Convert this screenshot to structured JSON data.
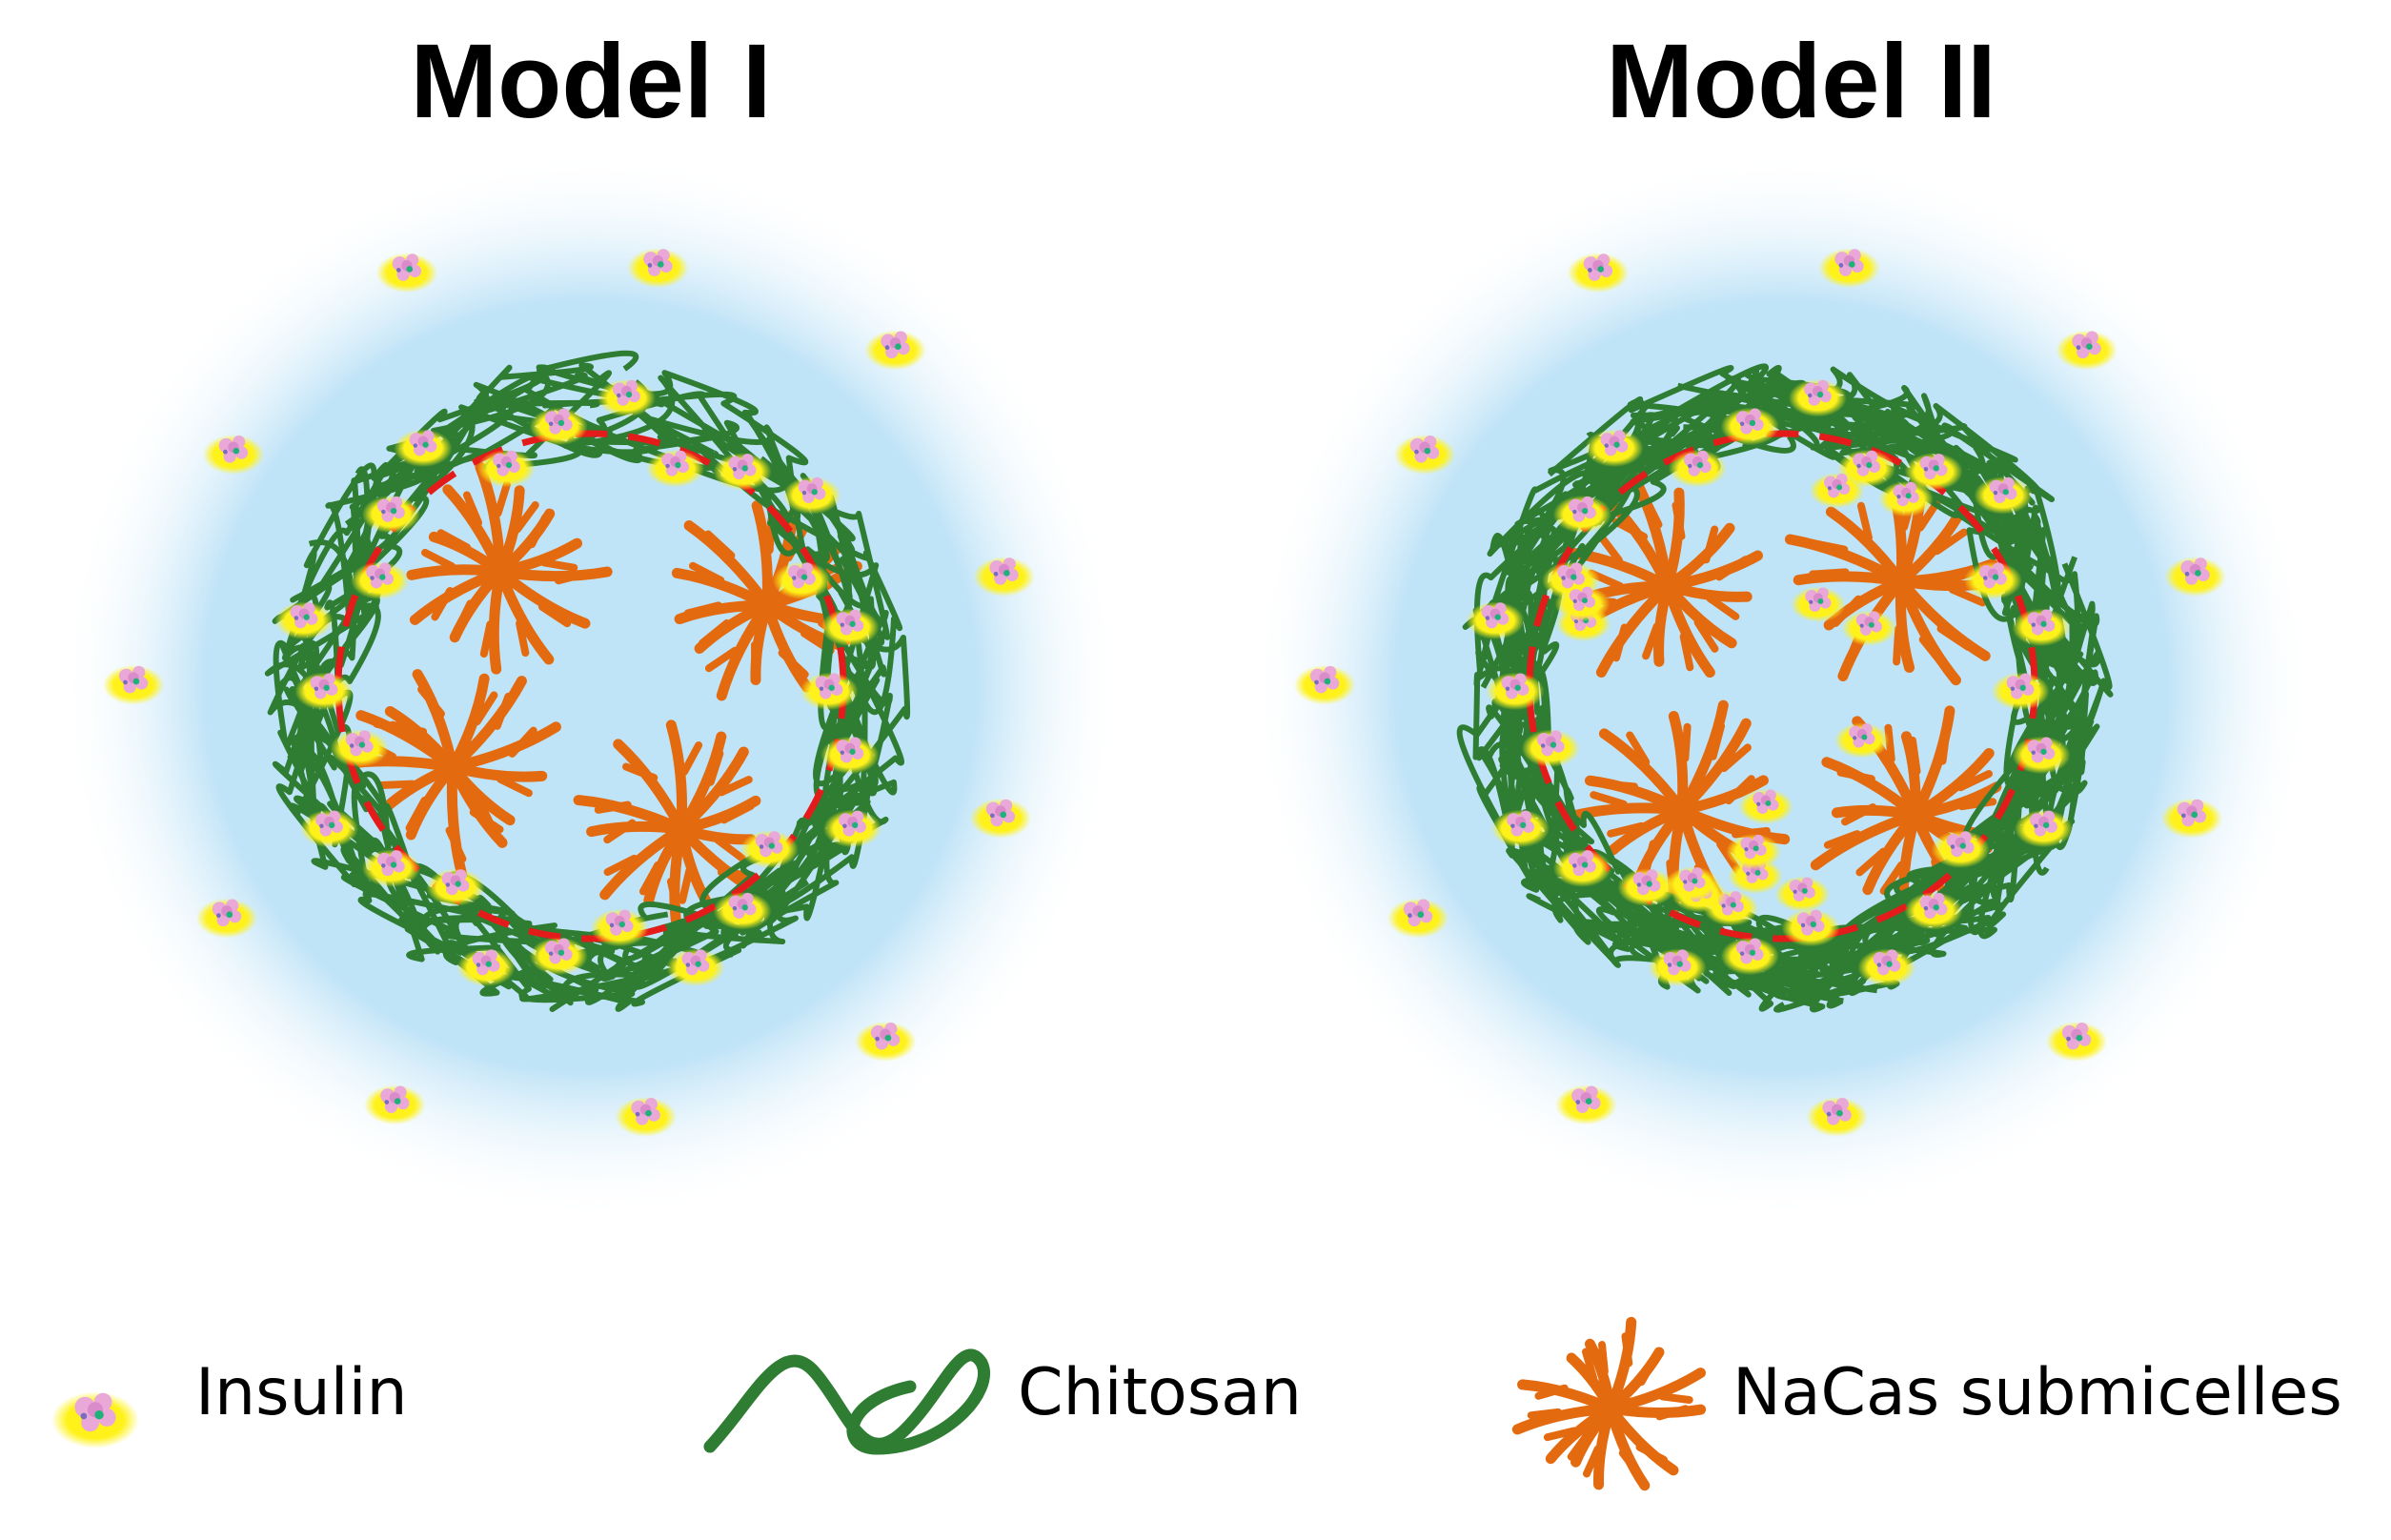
{
  "panels": [
    {
      "title": "Model I"
    },
    {
      "title": "Model II"
    }
  ],
  "legend": [
    {
      "label": "Insulin",
      "icon": "insulin-icon"
    },
    {
      "label": "Chitosan",
      "icon": "chitosan-icon"
    },
    {
      "label": "NaCas submicelles",
      "icon": "nacas-submicelle-icon"
    }
  ],
  "colors": {
    "halo": "#bfe3f7",
    "chitosan": "#2e7d32",
    "nacas": "#e46a10",
    "boundary": "#e41b1b",
    "insulin_glow": "#fff21a",
    "insulin_core": "#e9a8d8"
  }
}
